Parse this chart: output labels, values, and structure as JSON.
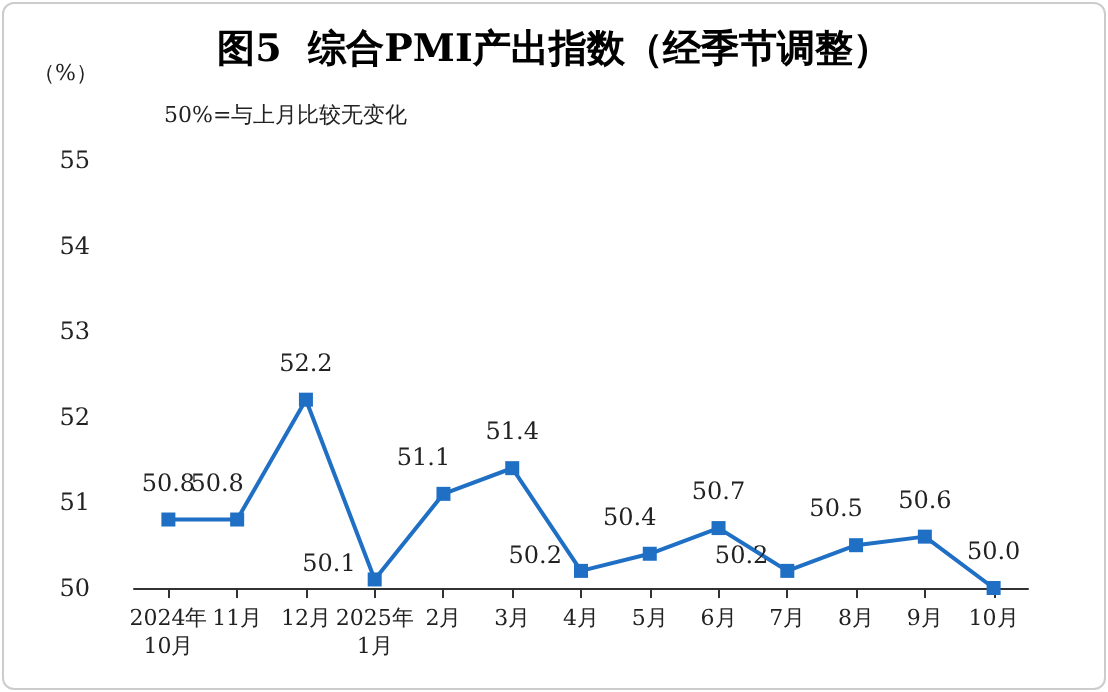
{
  "chart_data": {
    "type": "line",
    "title": "图5  综合PMI产出指数（经季节调整）",
    "ylabel": "（%）",
    "annotations": [
      "50%=与上月比较无变化"
    ],
    "categories": [
      "2024年\n10月",
      "11月",
      "12月",
      "2025年\n1月",
      "2月",
      "3月",
      "4月",
      "5月",
      "6月",
      "7月",
      "8月",
      "9月",
      "10月"
    ],
    "series": [
      {
        "color": "#1f6fc5",
        "values": [
          50.8,
          50.8,
          52.2,
          50.1,
          51.1,
          51.4,
          50.2,
          50.4,
          50.7,
          50.2,
          50.5,
          50.6,
          50.0
        ],
        "value_labels": [
          "50.8",
          "50.8",
          "52.2",
          "50.1",
          "51.1",
          "51.4",
          "50.2",
          "50.4",
          "50.7",
          "50.2",
          "50.5",
          "50.6",
          "50.0"
        ]
      }
    ],
    "ylim": [
      50,
      55
    ],
    "yticks": [
      50,
      51,
      52,
      53,
      54,
      55
    ],
    "grid": false,
    "marker": "square",
    "line_style": "solid"
  }
}
